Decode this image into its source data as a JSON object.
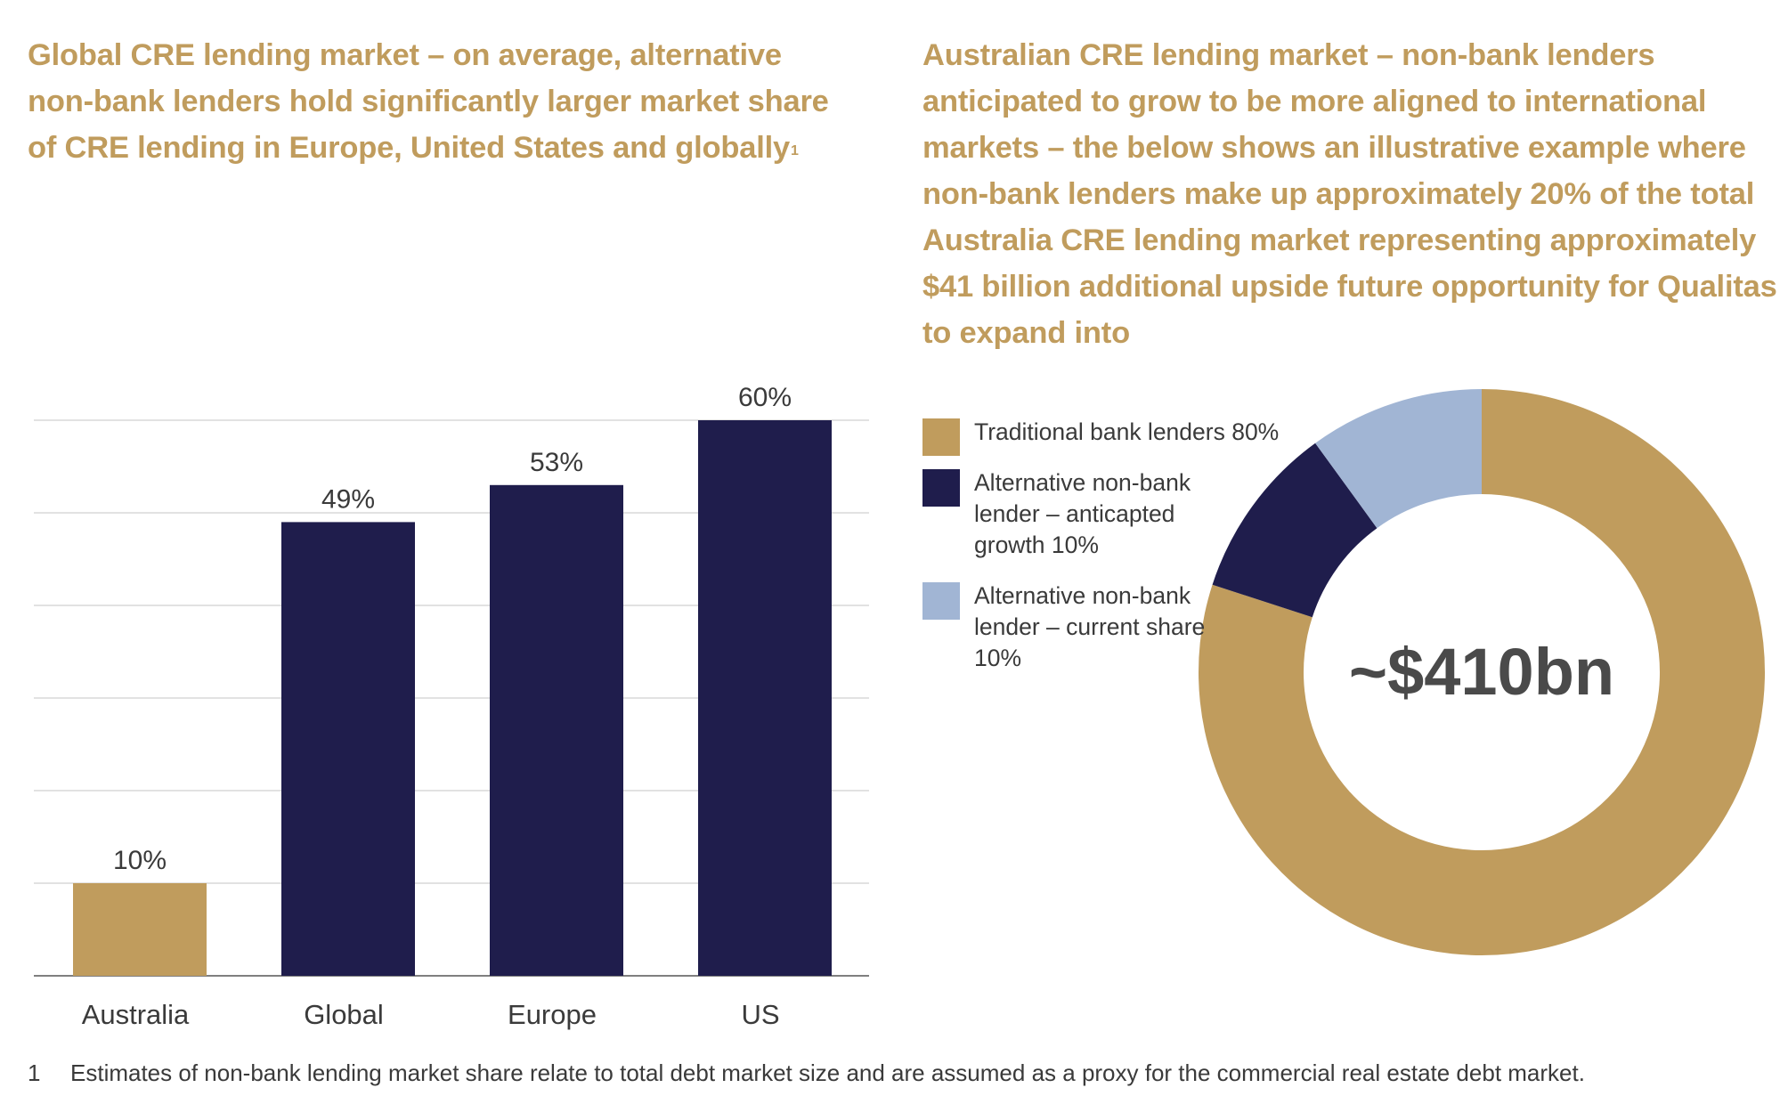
{
  "left_panel": {
    "heading": "Global CRE lending market – on average, alternative non-bank lenders hold significantly larger market share of CRE lending in Europe, United States and globally",
    "heading_footnote_ref": "1"
  },
  "right_panel": {
    "heading": "Australian CRE lending market – non-bank lenders anticipated to grow to be more aligned to international markets – the below shows an illustrative example where non-bank lenders make up approximately 20% of the total Australia CRE lending market representing approximately $41 billion additional upside future opportunity for Qualitas to expand into"
  },
  "footnote": {
    "number": "1",
    "text": "Estimates of non-bank lending market share relate to total debt market size and are assumed as a proxy for the commercial real estate debt market."
  },
  "chart_data": [
    {
      "type": "bar",
      "categories": [
        "Australia",
        "Global",
        "Europe",
        "US"
      ],
      "values": [
        10,
        49,
        53,
        60
      ],
      "value_labels": [
        "10%",
        "49%",
        "53%",
        "60%"
      ],
      "colors": [
        "#c09c5d",
        "#1f1d4c",
        "#1f1d4c",
        "#1f1d4c"
      ],
      "ylim": [
        0,
        60
      ],
      "grid": true,
      "title": "",
      "xlabel": "",
      "ylabel": ""
    },
    {
      "type": "pie",
      "donut": true,
      "center_label": "~$410bn",
      "slices": [
        {
          "label": "Traditional bank lenders 80%",
          "value": 80,
          "color": "#c09c5d"
        },
        {
          "label": "Alternative non-bank lender – anticapted growth 10%",
          "value": 10,
          "color": "#1f1d4c"
        },
        {
          "label": "Alternative non-bank lender – current share 10%",
          "value": 10,
          "color": "#a1b5d4"
        }
      ],
      "legend_position": "left"
    }
  ]
}
